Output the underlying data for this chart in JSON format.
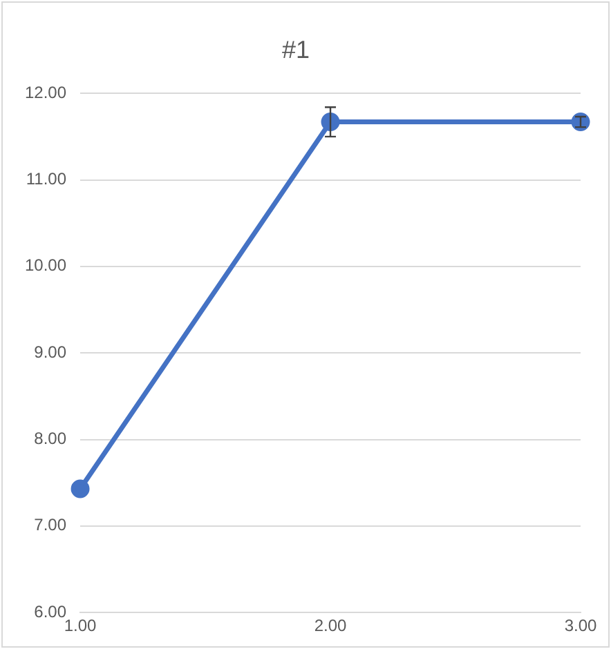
{
  "chart_data": {
    "type": "line",
    "title": "#1",
    "categories": [
      "1.00",
      "2.00",
      "3.00"
    ],
    "series": [
      {
        "color": "#4472c4",
        "values": [
          7.43,
          11.67,
          11.67
        ],
        "errors": [
          null,
          0.17,
          0.06
        ]
      }
    ],
    "ylim": [
      6,
      12
    ],
    "yticks": [
      {
        "value": 6,
        "label": "6.00"
      },
      {
        "value": 7,
        "label": "7.00"
      },
      {
        "value": 8,
        "label": "8.00"
      },
      {
        "value": 9,
        "label": "9.00"
      },
      {
        "value": 10,
        "label": "10.00"
      },
      {
        "value": 11,
        "label": "11.00"
      },
      {
        "value": 12,
        "label": "12.00"
      }
    ],
    "grid": "y",
    "legend": false,
    "marker": "circle",
    "line_style": "solid"
  }
}
